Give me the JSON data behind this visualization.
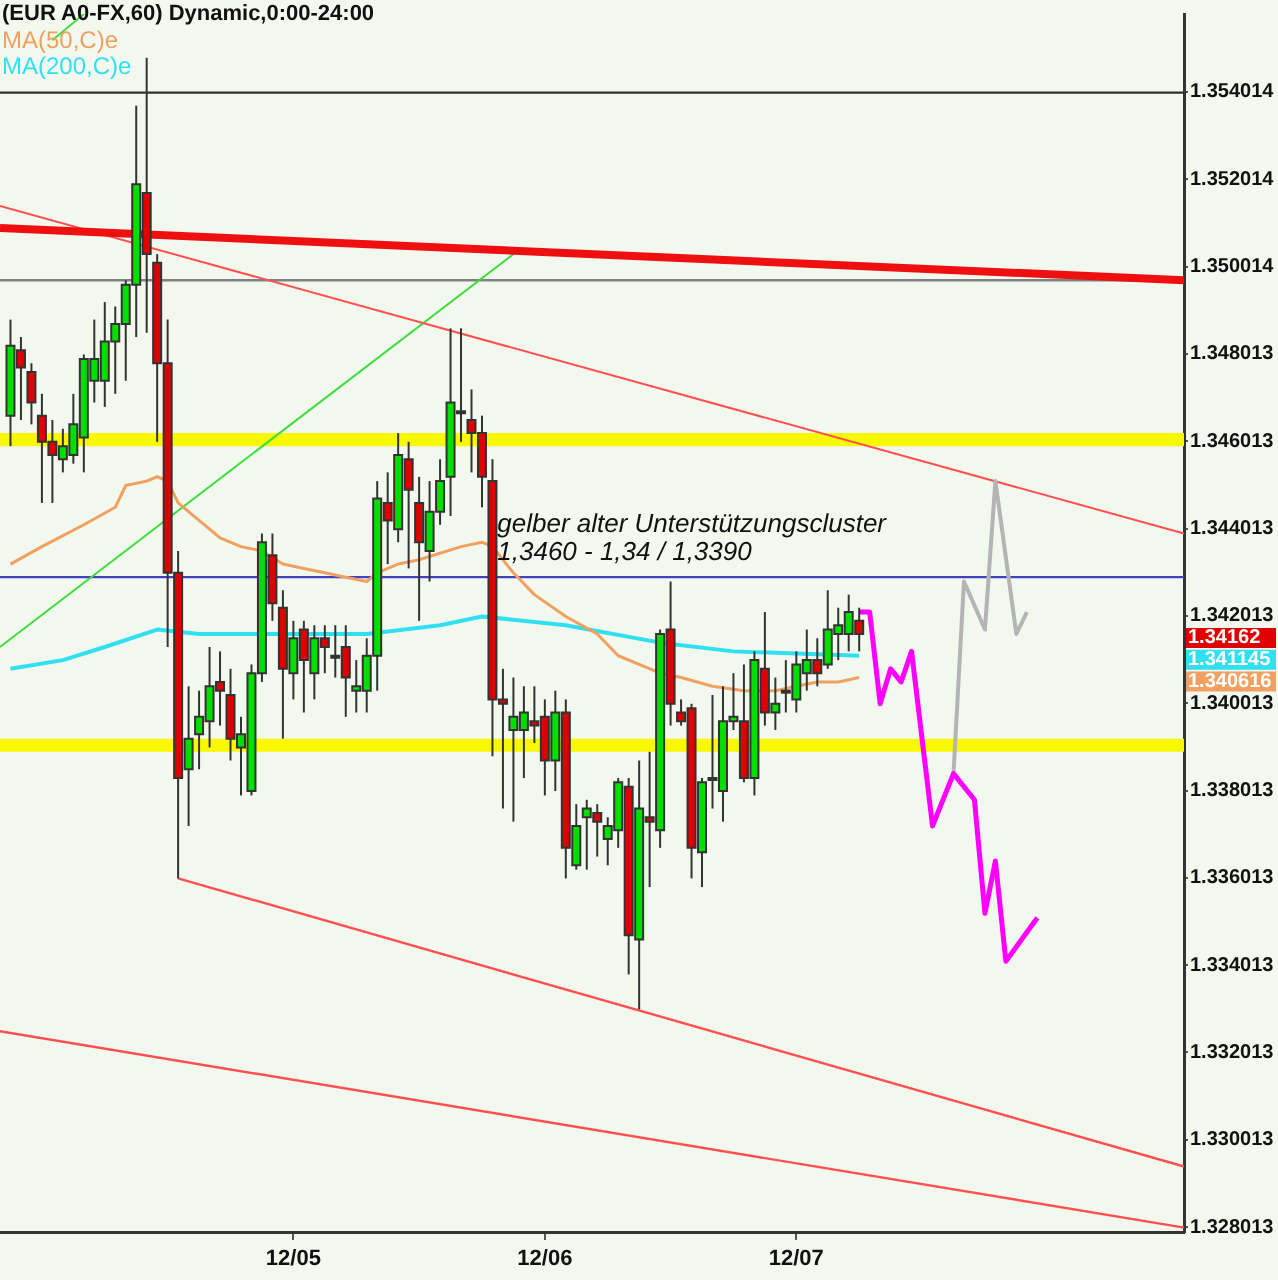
{
  "chart_data": {
    "type": "candlestick",
    "title": "(EUR A0-FX,60) Dynamic,0:00-24:00",
    "categories": [
      null,
      null,
      null,
      null,
      null,
      null,
      null,
      null,
      null,
      null,
      null,
      null,
      null,
      null,
      null,
      null,
      null,
      null,
      null,
      null,
      null,
      null,
      null,
      null,
      null,
      null,
      null,
      null,
      "12/05",
      null,
      null,
      null,
      null,
      null,
      null,
      null,
      null,
      null,
      null,
      null,
      null,
      null,
      null,
      null,
      null,
      null,
      null,
      null,
      null,
      null,
      null,
      null,
      "12/06",
      null,
      null,
      null,
      null,
      null,
      null,
      null,
      null,
      null,
      null,
      null,
      null,
      null,
      null,
      null,
      null,
      null,
      null,
      null,
      null,
      null,
      null,
      null,
      "12/07",
      null,
      null,
      null,
      null,
      null,
      null,
      null,
      null,
      null,
      null,
      null,
      null,
      null,
      null,
      null,
      null,
      null,
      null,
      null,
      null,
      null,
      null,
      null,
      null,
      null,
      null,
      null,
      null,
      null,
      null,
      null,
      null,
      null,
      null,
      null,
      null,
      null
    ],
    "ohlc": [
      null,
      [
        1.3466,
        1.3488,
        1.3459,
        1.3482
      ],
      [
        1.3481,
        1.3484,
        1.3465,
        1.3477
      ],
      [
        1.3476,
        1.3478,
        1.3464,
        1.3469
      ],
      [
        1.3466,
        1.3471,
        1.3446,
        1.346
      ],
      [
        1.346,
        1.3465,
        1.3446,
        1.3457
      ],
      [
        1.3456,
        1.3463,
        1.3453,
        1.3459
      ],
      [
        1.3457,
        1.3471,
        1.3455,
        1.3464
      ],
      [
        1.3461,
        1.348,
        1.3453,
        1.3479
      ],
      [
        1.3474,
        1.3488,
        1.3469,
        1.3479
      ],
      [
        1.3474,
        1.3492,
        1.3468,
        1.3483
      ],
      [
        1.3483,
        1.3491,
        1.3471,
        1.3487
      ],
      [
        1.3487,
        1.3497,
        1.3474,
        1.3496
      ],
      [
        1.3496,
        1.3537,
        1.3484,
        1.3519
      ],
      [
        1.3517,
        1.3548,
        1.3485,
        1.3503
      ],
      [
        1.3501,
        1.3503,
        1.346,
        1.3478
      ],
      [
        1.3478,
        1.3488,
        1.3413,
        1.343
      ],
      [
        1.343,
        1.3435,
        1.336,
        1.3383
      ],
      [
        1.3385,
        1.3404,
        1.3372,
        1.3392
      ],
      [
        1.3393,
        1.3403,
        1.3385,
        1.3397
      ],
      [
        1.3396,
        1.3413,
        1.339,
        1.3404
      ],
      [
        1.3405,
        1.3412,
        1.3395,
        1.3403
      ],
      [
        1.3402,
        1.3408,
        1.3387,
        1.3392
      ],
      [
        1.339,
        1.3397,
        1.3379,
        1.3393
      ],
      [
        1.338,
        1.3409,
        1.3379,
        1.3407
      ],
      [
        1.3407,
        1.3439,
        1.3405,
        1.3437
      ],
      [
        1.3434,
        1.3439,
        1.3419,
        1.3423
      ],
      [
        1.3422,
        1.3426,
        1.3392,
        1.3408
      ],
      [
        1.3407,
        1.3419,
        1.3401,
        1.3415
      ],
      [
        1.3417,
        1.3419,
        1.3398,
        1.341
      ],
      [
        1.3407,
        1.3418,
        1.3401,
        1.3415
      ],
      [
        1.3415,
        1.3418,
        1.3407,
        1.3413
      ],
      [
        1.3411,
        1.3418,
        1.3406,
        1.3411
      ],
      [
        1.3413,
        1.3418,
        1.3397,
        1.3406
      ],
      [
        1.3403,
        1.341,
        1.3398,
        1.3404
      ],
      [
        1.3403,
        1.3415,
        1.3398,
        1.3411
      ],
      [
        1.3411,
        1.3451,
        1.3403,
        1.3447
      ],
      [
        1.3446,
        1.3453,
        1.3432,
        1.3442
      ],
      [
        1.344,
        1.3462,
        1.3437,
        1.3457
      ],
      [
        1.3456,
        1.346,
        1.3431,
        1.3449
      ],
      [
        1.3446,
        1.3452,
        1.3419,
        1.3437
      ],
      [
        1.3435,
        1.3451,
        1.3428,
        1.3444
      ],
      [
        1.3444,
        1.3456,
        1.3441,
        1.3451
      ],
      [
        1.3452,
        1.3486,
        1.3443,
        1.3469
      ],
      [
        1.3467,
        1.3486,
        1.346,
        1.3467
      ],
      [
        1.3465,
        1.3472,
        1.3453,
        1.3462
      ],
      [
        1.3462,
        1.3466,
        1.3445,
        1.3452
      ],
      [
        1.3451,
        1.3456,
        1.3388,
        1.3401
      ],
      [
        1.3401,
        1.3408,
        1.3376,
        1.34
      ],
      [
        1.3394,
        1.3406,
        1.3373,
        1.3397
      ],
      [
        1.3394,
        1.3404,
        1.3383,
        1.3398
      ],
      [
        1.3396,
        1.3404,
        1.3391,
        1.3395
      ],
      [
        1.3397,
        1.3401,
        1.3379,
        1.3387
      ],
      [
        1.3387,
        1.3403,
        1.338,
        1.3398
      ],
      [
        1.3398,
        1.3401,
        1.336,
        1.3367
      ],
      [
        1.3363,
        1.3377,
        1.3362,
        1.3372
      ],
      [
        1.3374,
        1.3378,
        1.3362,
        1.3376
      ],
      [
        1.3375,
        1.3377,
        1.3365,
        1.3373
      ],
      [
        1.3369,
        1.3374,
        1.3363,
        1.3372
      ],
      [
        1.3371,
        1.3383,
        1.3367,
        1.3382
      ],
      [
        1.3381,
        1.3383,
        1.3338,
        1.3347
      ],
      [
        1.3346,
        1.3387,
        1.333,
        1.3376
      ],
      [
        1.3374,
        1.3389,
        1.3358,
        1.3373
      ],
      [
        1.3371,
        1.3417,
        1.3367,
        1.3416
      ],
      [
        1.3417,
        1.3428,
        1.3395,
        1.34
      ],
      [
        1.3398,
        1.3401,
        1.3395,
        1.3396
      ],
      [
        1.3399,
        1.34,
        1.336,
        1.3367
      ],
      [
        1.3366,
        1.3383,
        1.3358,
        1.3382
      ],
      [
        1.3383,
        1.3402,
        1.3376,
        1.3383
      ],
      [
        1.338,
        1.3404,
        1.3373,
        1.3396
      ],
      [
        1.3396,
        1.3407,
        1.3394,
        1.3397
      ],
      [
        1.3396,
        1.3409,
        1.3382,
        1.3383
      ],
      [
        1.3383,
        1.3412,
        1.3379,
        1.341
      ],
      [
        1.3408,
        1.3421,
        1.3395,
        1.3398
      ],
      [
        1.3398,
        1.3406,
        1.3394,
        1.34
      ],
      [
        1.3403,
        1.341,
        1.3398,
        1.3403
      ],
      [
        1.3401,
        1.3412,
        1.3398,
        1.3409
      ],
      [
        1.3407,
        1.3417,
        1.3403,
        1.341
      ],
      [
        1.341,
        1.3415,
        1.3404,
        1.3407
      ],
      [
        1.3409,
        1.3426,
        1.3408,
        1.3417
      ],
      [
        1.3416,
        1.3422,
        1.341,
        1.3418
      ],
      [
        1.3416,
        1.3425,
        1.3412,
        1.3421
      ],
      [
        1.3419,
        1.3422,
        1.3412,
        1.3416
      ],
      null,
      null,
      null,
      null,
      null,
      null,
      null,
      null,
      null,
      null,
      null,
      null,
      null,
      null,
      null,
      null,
      null,
      null,
      null,
      null,
      null,
      null,
      null,
      null,
      null,
      null,
      null,
      null,
      null,
      null,
      null
    ],
    "colors": [
      null,
      "#00e000",
      "#e00000",
      "#e00000",
      "#e00000",
      "#e00000",
      "#00e000",
      "#00e000",
      "#00e000",
      "#00e000",
      "#00e000",
      "#00e000",
      "#00e000",
      "#00e000",
      "#e00000",
      "#e00000",
      "#e00000",
      "#e00000",
      "#00e000",
      "#00e000",
      "#00e000",
      "#e00000",
      "#e00000",
      "#00e000",
      "#00e000",
      "#00e000",
      "#e00000",
      "#e00000",
      "#00e000",
      "#e00000",
      "#00e000",
      "#e00000",
      "#e00000",
      "#e00000",
      "#00e000",
      "#00e000",
      "#00e000",
      "#e00000",
      "#00e000",
      "#e00000",
      "#e00000",
      "#00e000",
      "#00e000",
      "#00e000",
      "#e00000",
      "#e00000",
      "#e00000",
      "#e00000",
      "#e00000",
      "#00e000",
      "#00e000",
      "#e00000",
      "#e00000",
      "#00e000",
      "#e00000",
      "#00e000",
      "#00e000",
      "#e00000",
      "#00e000",
      "#00e000",
      "#e00000",
      "#00e000",
      "#e00000",
      "#00e000",
      "#e00000",
      "#e00000",
      "#e00000",
      "#00e000",
      "#e00000",
      "#00e000",
      "#00e000",
      "#e00000",
      "#00e000",
      "#e00000",
      "#00e000",
      "#e00000",
      "#00e000",
      "#00e000",
      "#e00000",
      "#00e000",
      "#00e000",
      "#00e000",
      "#e00000",
      null,
      null,
      null,
      null,
      null,
      null,
      null,
      null,
      null,
      null,
      null,
      null,
      null,
      null,
      null,
      null,
      null,
      null,
      null,
      null,
      null,
      null,
      null,
      null,
      null,
      null,
      null,
      null,
      null,
      null,
      null
    ],
    "series": [
      {
        "type": "line",
        "name": "MA(50,C)e",
        "color": "#f0a060",
        "values": [
          null,
          1.3432,
          null,
          null,
          1.3436,
          null,
          null,
          null,
          1.3441,
          null,
          null,
          1.3445,
          1.345,
          null,
          1.3451,
          1.3452,
          1.3451,
          1.3446,
          null,
          1.3442,
          null,
          1.3438,
          null,
          1.3436,
          null,
          1.3435,
          null,
          1.3432,
          null,
          1.3431,
          null,
          1.343,
          null,
          1.3429,
          null,
          1.3428,
          1.343,
          null,
          1.3432,
          null,
          1.3433,
          null,
          null,
          null,
          1.3436,
          null,
          1.3437,
          1.3436,
          null,
          1.343,
          null,
          1.3425,
          null,
          null,
          1.342,
          null,
          null,
          1.3416,
          null,
          1.3411,
          null,
          1.3409,
          null,
          1.3407,
          null,
          1.3406,
          null,
          null,
          1.3404,
          null,
          null,
          1.3403,
          null,
          null,
          1.3403,
          null,
          1.3404,
          null,
          1.3405,
          null,
          1.3405,
          null,
          1.3406,
          null,
          null,
          null,
          null,
          null,
          null,
          null,
          null,
          null,
          null,
          null,
          null,
          null,
          null,
          null,
          null,
          null,
          null,
          null,
          null,
          null,
          null,
          null,
          null,
          null,
          null,
          null,
          null,
          null,
          null,
          null
        ]
      },
      {
        "type": "line",
        "name": "MA(200,C)e",
        "color": "#30e0f0",
        "values": [
          null,
          1.3408,
          null,
          null,
          null,
          null,
          1.341,
          null,
          null,
          null,
          1.3413,
          null,
          null,
          null,
          null,
          1.3417,
          null,
          null,
          null,
          1.3416,
          null,
          null,
          null,
          null,
          null,
          1.3416,
          null,
          null,
          null,
          null,
          null,
          null,
          null,
          null,
          null,
          1.3416,
          null,
          null,
          null,
          null,
          null,
          null,
          1.3418,
          null,
          null,
          null,
          1.342,
          null,
          null,
          null,
          null,
          null,
          null,
          null,
          1.3418,
          null,
          null,
          null,
          null,
          null,
          null,
          null,
          null,
          1.3414,
          null,
          null,
          null,
          null,
          null,
          null,
          1.3412,
          null,
          null,
          null,
          null,
          null,
          null,
          null,
          null,
          null,
          null,
          null,
          1.3411,
          null,
          null,
          null,
          null,
          null,
          null,
          null,
          null,
          null,
          null,
          null,
          null,
          null,
          null,
          null,
          null,
          null,
          null,
          null,
          null,
          null,
          null,
          null,
          null,
          null,
          null,
          null,
          null,
          null,
          null,
          null
        ]
      },
      {
        "type": "line",
        "color": "#ff00ff",
        "values": [
          null,
          null,
          null,
          null,
          null,
          null,
          null,
          null,
          null,
          null,
          null,
          null,
          null,
          null,
          null,
          null,
          null,
          null,
          null,
          null,
          null,
          null,
          null,
          null,
          null,
          null,
          null,
          null,
          null,
          null,
          null,
          null,
          null,
          null,
          null,
          null,
          null,
          null,
          null,
          null,
          null,
          null,
          null,
          null,
          null,
          null,
          null,
          null,
          null,
          null,
          null,
          null,
          null,
          null,
          null,
          null,
          null,
          null,
          null,
          null,
          null,
          null,
          null,
          null,
          null,
          null,
          null,
          null,
          null,
          null,
          null,
          null,
          null,
          null,
          null,
          null,
          null,
          null,
          null,
          null,
          null,
          null,
          1.3421,
          1.3421,
          1.34,
          1.3408,
          1.3405,
          1.3412,
          null,
          1.3372,
          null,
          1.3384,
          null,
          1.3378,
          1.3352,
          1.3364,
          1.3341,
          null,
          null,
          1.3351,
          null,
          null,
          null,
          null,
          null,
          null,
          null,
          null,
          null,
          null,
          null,
          null,
          null,
          null
        ]
      },
      {
        "type": "line",
        "color": "#b4b4b4",
        "values": [
          null,
          null,
          null,
          null,
          null,
          null,
          null,
          null,
          null,
          null,
          null,
          null,
          null,
          null,
          null,
          null,
          null,
          null,
          null,
          null,
          null,
          null,
          null,
          null,
          null,
          null,
          null,
          null,
          null,
          null,
          null,
          null,
          null,
          null,
          null,
          null,
          null,
          null,
          null,
          null,
          null,
          null,
          null,
          null,
          null,
          null,
          null,
          null,
          null,
          null,
          null,
          null,
          null,
          null,
          null,
          null,
          null,
          null,
          null,
          null,
          null,
          null,
          null,
          null,
          null,
          null,
          null,
          null,
          null,
          null,
          null,
          null,
          null,
          null,
          null,
          null,
          null,
          null,
          null,
          null,
          null,
          null,
          null,
          null,
          null,
          null,
          null,
          null,
          null,
          null,
          null,
          1.3384,
          1.3428,
          null,
          1.3417,
          1.3451,
          null,
          1.3416,
          1.3421,
          null,
          null,
          null,
          null,
          null,
          null,
          null,
          null,
          null,
          null,
          null,
          null,
          null,
          null,
          null
        ]
      },
      {
        "type": "line",
        "color": "#ee1010",
        "values": [
          1.3509,
          null,
          null,
          null,
          null,
          null,
          null,
          null,
          null,
          null,
          null,
          null,
          null,
          null,
          null,
          null,
          null,
          null,
          null,
          null,
          null,
          null,
          null,
          null,
          null,
          null,
          null,
          null,
          null,
          null,
          null,
          null,
          null,
          null,
          null,
          null,
          null,
          null,
          null,
          null,
          null,
          null,
          null,
          null,
          null,
          null,
          null,
          null,
          null,
          null,
          null,
          null,
          null,
          null,
          null,
          null,
          null,
          null,
          null,
          null,
          null,
          null,
          null,
          null,
          null,
          null,
          null,
          null,
          null,
          null,
          null,
          null,
          null,
          null,
          null,
          null,
          null,
          null,
          null,
          null,
          null,
          null,
          null,
          null,
          null,
          null,
          null,
          null,
          null,
          null,
          null,
          null,
          null,
          null,
          null,
          null,
          null,
          null,
          null,
          null,
          null,
          null,
          null,
          null,
          null,
          null,
          null,
          null,
          null,
          null,
          null,
          null,
          null,
          1.3497
        ]
      },
      {
        "type": "line",
        "color": "#ff5050",
        "values": [
          1.3514,
          null,
          null,
          null,
          null,
          null,
          null,
          null,
          null,
          null,
          null,
          null,
          null,
          null,
          null,
          null,
          null,
          null,
          null,
          null,
          null,
          null,
          null,
          null,
          null,
          null,
          null,
          null,
          null,
          null,
          null,
          null,
          null,
          null,
          null,
          null,
          null,
          null,
          null,
          null,
          null,
          null,
          null,
          null,
          null,
          null,
          null,
          null,
          null,
          null,
          null,
          null,
          null,
          null,
          null,
          null,
          null,
          null,
          null,
          null,
          null,
          null,
          null,
          null,
          null,
          null,
          null,
          null,
          null,
          null,
          null,
          null,
          null,
          null,
          null,
          null,
          null,
          null,
          null,
          null,
          null,
          null,
          null,
          null,
          null,
          null,
          null,
          null,
          null,
          null,
          null,
          null,
          null,
          null,
          null,
          null,
          null,
          null,
          null,
          null,
          null,
          null,
          null,
          null,
          null,
          null,
          null,
          null,
          null,
          null,
          null,
          null,
          null,
          1.3439
        ]
      },
      {
        "type": "line",
        "color": "#ff5050",
        "values": [
          null,
          null,
          null,
          null,
          null,
          null,
          null,
          null,
          null,
          null,
          null,
          null,
          null,
          null,
          null,
          null,
          null,
          1.336,
          null,
          null,
          null,
          null,
          null,
          null,
          null,
          null,
          null,
          null,
          null,
          null,
          null,
          null,
          null,
          null,
          null,
          null,
          null,
          null,
          null,
          null,
          null,
          null,
          null,
          null,
          null,
          null,
          null,
          null,
          null,
          null,
          null,
          null,
          null,
          null,
          null,
          null,
          null,
          null,
          null,
          null,
          null,
          null,
          null,
          null,
          null,
          null,
          null,
          null,
          null,
          null,
          null,
          null,
          null,
          null,
          null,
          null,
          null,
          null,
          null,
          null,
          null,
          null,
          null,
          null,
          null,
          null,
          null,
          null,
          null,
          null,
          null,
          null,
          null,
          null,
          null,
          null,
          null,
          null,
          null,
          null,
          null,
          null,
          null,
          null,
          null,
          null,
          null,
          null,
          null,
          null,
          null,
          null,
          null,
          1.3294
        ]
      },
      {
        "type": "line",
        "color": "#ff5050",
        "values": [
          1.3325,
          null,
          null,
          null,
          null,
          null,
          null,
          null,
          null,
          null,
          null,
          null,
          null,
          null,
          null,
          null,
          null,
          null,
          null,
          null,
          null,
          null,
          null,
          null,
          null,
          null,
          null,
          null,
          null,
          null,
          null,
          null,
          null,
          null,
          null,
          null,
          null,
          null,
          null,
          null,
          null,
          null,
          null,
          null,
          null,
          null,
          null,
          null,
          null,
          null,
          null,
          null,
          null,
          null,
          null,
          null,
          null,
          null,
          null,
          null,
          null,
          null,
          null,
          null,
          null,
          null,
          null,
          null,
          null,
          null,
          null,
          null,
          null,
          null,
          null,
          null,
          null,
          null,
          null,
          null,
          null,
          null,
          null,
          null,
          null,
          null,
          null,
          null,
          null,
          null,
          null,
          null,
          null,
          null,
          null,
          null,
          null,
          null,
          null,
          null,
          null,
          null,
          null,
          null,
          null,
          null,
          null,
          null,
          null,
          null,
          null,
          null,
          null,
          1.328
        ]
      },
      {
        "type": "line",
        "color": "#40dd40",
        "values": [
          1.3413,
          null,
          null,
          null,
          null,
          null,
          null,
          null,
          null,
          null,
          null,
          null,
          null,
          null,
          null,
          null,
          null,
          null,
          null,
          null,
          null,
          null,
          null,
          null,
          null,
          null,
          null,
          null,
          null,
          null,
          null,
          null,
          null,
          null,
          null,
          null,
          null,
          null,
          null,
          null,
          null,
          null,
          null,
          null,
          null,
          null,
          null,
          null,
          null,
          1.3503,
          null,
          null,
          null,
          null,
          null,
          null,
          null,
          null,
          null,
          null,
          null,
          null,
          null,
          null,
          null,
          null,
          null,
          null,
          null,
          null,
          null,
          null,
          null,
          null,
          null,
          null,
          null,
          null,
          null,
          null,
          null,
          null,
          null,
          null,
          null,
          null,
          null,
          null,
          null,
          null,
          null,
          null,
          null,
          null,
          null,
          null,
          null,
          null,
          null,
          null,
          null,
          null,
          null,
          null,
          null,
          null,
          null,
          null,
          null,
          null,
          null,
          null,
          null,
          null
        ]
      },
      {
        "type": "line",
        "color": "#40dd40",
        "values": [
          null,
          null,
          null,
          null,
          null,
          1.3552,
          null,
          null,
          1.3558,
          null,
          null,
          null,
          null,
          null,
          null,
          null,
          null,
          null,
          null,
          null,
          null,
          null,
          null,
          null,
          null,
          null,
          null,
          null,
          null,
          null,
          null,
          null,
          null,
          null,
          null,
          null,
          null,
          null,
          null,
          null,
          null,
          null,
          null,
          null,
          null,
          null,
          null,
          null,
          null,
          null,
          null,
          null,
          null,
          null,
          null,
          null,
          null,
          null,
          null,
          null,
          null,
          null,
          null,
          null,
          null,
          null,
          null,
          null,
          null,
          null,
          null,
          null,
          null,
          null,
          null,
          null,
          null,
          null,
          null,
          null,
          null,
          null,
          null,
          null,
          null,
          null,
          null,
          null,
          null,
          null,
          null,
          null,
          null,
          null,
          null,
          null,
          null,
          null,
          null,
          null,
          null,
          null,
          null,
          null,
          null,
          null,
          null,
          null,
          null,
          null,
          null,
          null,
          null,
          null
        ]
      }
    ],
    "ylim": [
      1.3279,
      1.3558
    ],
    "yticks": [
      1.328013,
      1.330013,
      1.332013,
      1.334013,
      1.336013,
      1.338013,
      1.340013,
      1.342013,
      1.344013,
      1.346013,
      1.348013,
      1.350014,
      1.352014,
      1.354014
    ],
    "grid": false,
    "legend": "top left",
    "bands": [
      {
        "axis": "y",
        "from": 1.3459,
        "to": 1.3462,
        "color": "#f8f800"
      },
      {
        "axis": "y",
        "from": 1.3389,
        "to": 1.3392,
        "color": "#f8f800"
      }
    ],
    "ref_lines": [
      {
        "axis": "y",
        "value": 1.354,
        "color": "#303030"
      },
      {
        "axis": "y",
        "value": 1.3497,
        "color": "#808080"
      },
      {
        "axis": "y",
        "value": 1.3429,
        "color": "#4040c0"
      }
    ],
    "annotations": [
      "gelber alter Unterstützungscluster",
      "1,3460 - 1,34 / 1,3390",
      "1.34162",
      "1.341145",
      "1.340616"
    ]
  }
}
